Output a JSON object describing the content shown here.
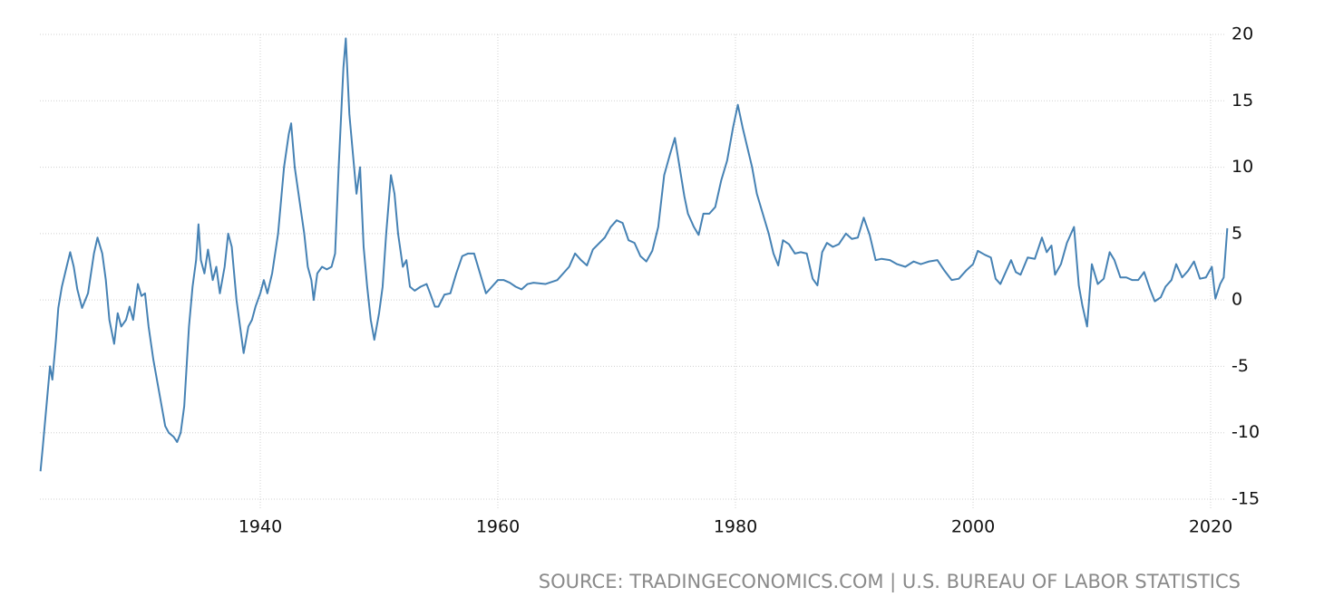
{
  "chart_data": {
    "type": "line",
    "source": "SOURCE: TRADINGECONOMICS.COM | U.S. BUREAU OF LABOR STATISTICS",
    "x": [
      1921.5,
      1921.7,
      1922.0,
      1922.3,
      1922.5,
      1922.8,
      1923.0,
      1923.3,
      1923.7,
      1924.0,
      1924.3,
      1924.6,
      1925.0,
      1925.5,
      1926.0,
      1926.3,
      1926.7,
      1927.0,
      1927.3,
      1927.7,
      1928.0,
      1928.3,
      1928.7,
      1929.0,
      1929.3,
      1929.7,
      1930.0,
      1930.3,
      1930.6,
      1931.0,
      1931.5,
      1932.0,
      1932.3,
      1932.7,
      1933.0,
      1933.3,
      1933.6,
      1934.0,
      1934.3,
      1934.6,
      1934.8,
      1935.0,
      1935.3,
      1935.6,
      1936.0,
      1936.3,
      1936.6,
      1937.0,
      1937.3,
      1937.6,
      1938.0,
      1938.3,
      1938.6,
      1939.0,
      1939.3,
      1939.6,
      1940.0,
      1940.3,
      1940.6,
      1941.0,
      1941.5,
      1942.0,
      1942.4,
      1942.6,
      1942.9,
      1943.3,
      1943.7,
      1944.0,
      1944.3,
      1944.5,
      1944.8,
      1945.2,
      1945.6,
      1946.0,
      1946.3,
      1946.6,
      1947.0,
      1947.2,
      1947.5,
      1947.8,
      1948.1,
      1948.4,
      1948.7,
      1949.0,
      1949.3,
      1949.6,
      1950.0,
      1950.3,
      1950.6,
      1951.0,
      1951.3,
      1951.6,
      1952.0,
      1952.3,
      1952.6,
      1953.0,
      1953.5,
      1954.0,
      1954.3,
      1954.7,
      1955.0,
      1955.5,
      1956.0,
      1956.5,
      1957.0,
      1957.5,
      1958.0,
      1958.5,
      1959.0,
      1959.5,
      1960.0,
      1960.5,
      1961.0,
      1961.5,
      1962.0,
      1962.5,
      1963.0,
      1964.0,
      1965.0,
      1966.0,
      1966.5,
      1967.0,
      1967.5,
      1968.0,
      1969.0,
      1969.5,
      1970.0,
      1970.5,
      1971.0,
      1971.5,
      1972.0,
      1972.5,
      1973.0,
      1973.5,
      1974.0,
      1974.5,
      1974.9,
      1975.3,
      1975.7,
      1976.0,
      1976.5,
      1976.9,
      1977.3,
      1977.8,
      1978.3,
      1978.8,
      1979.3,
      1979.8,
      1980.2,
      1980.6,
      1981.0,
      1981.4,
      1981.8,
      1982.3,
      1982.8,
      1983.2,
      1983.6,
      1984.0,
      1984.5,
      1985.0,
      1985.5,
      1986.0,
      1986.5,
      1986.9,
      1987.3,
      1987.7,
      1988.2,
      1988.7,
      1989.3,
      1989.8,
      1990.3,
      1990.8,
      1991.3,
      1991.8,
      1992.3,
      1993.0,
      1993.6,
      1994.3,
      1995.0,
      1995.6,
      1996.3,
      1997.0,
      1997.6,
      1998.2,
      1998.8,
      1999.4,
      2000.0,
      2000.4,
      2001.0,
      2001.5,
      2001.9,
      2002.3,
      2002.8,
      2003.2,
      2003.6,
      2004.0,
      2004.6,
      2005.2,
      2005.8,
      2006.2,
      2006.6,
      2006.9,
      2007.4,
      2007.9,
      2008.5,
      2008.9,
      2009.2,
      2009.6,
      2010.0,
      2010.5,
      2011.0,
      2011.5,
      2011.9,
      2012.4,
      2012.9,
      2013.4,
      2013.9,
      2014.4,
      2014.9,
      2015.3,
      2015.8,
      2016.2,
      2016.7,
      2017.1,
      2017.6,
      2018.1,
      2018.6,
      2019.1,
      2019.6,
      2020.1,
      2020.4,
      2020.8,
      2021.1,
      2021.4
    ],
    "series": [
      {
        "color": "#4682b4",
        "values": [
          -12.9,
          -11,
          -8,
          -5,
          -6,
          -3,
          -0.6,
          1,
          2.5,
          3.6,
          2.5,
          0.8,
          -0.6,
          0.5,
          3.5,
          4.7,
          3.5,
          1.5,
          -1.5,
          -3.3,
          -1,
          -2,
          -1.5,
          -0.5,
          -1.5,
          1.2,
          0.3,
          0.5,
          -2,
          -4.5,
          -7,
          -9.5,
          -10,
          -10.3,
          -10.7,
          -10,
          -8,
          -2,
          1,
          3,
          5.7,
          3,
          2,
          3.8,
          1.5,
          2.5,
          0.5,
          2.5,
          5,
          4,
          0,
          -2,
          -4,
          -2,
          -1.5,
          -0.5,
          0.5,
          1.5,
          0.5,
          2,
          5,
          10,
          12.5,
          13.3,
          10,
          7.5,
          5,
          2.5,
          1.5,
          0,
          2,
          2.5,
          2.3,
          2.5,
          3.5,
          10,
          17.5,
          19.7,
          14,
          11,
          8,
          10,
          4,
          1,
          -1.5,
          -3,
          -1,
          1,
          5,
          9.4,
          8,
          5,
          2.5,
          3,
          1,
          0.7,
          1,
          1.2,
          0.5,
          -0.5,
          -0.5,
          0.4,
          0.5,
          2,
          3.3,
          3.5,
          3.5,
          2,
          0.5,
          1,
          1.5,
          1.5,
          1.3,
          1,
          0.8,
          1.2,
          1.3,
          1.2,
          1.5,
          2.5,
          3.5,
          3,
          2.6,
          3.8,
          4.7,
          5.5,
          6,
          5.8,
          4.5,
          4.3,
          3.3,
          2.9,
          3.7,
          5.5,
          9.4,
          11,
          12.2,
          10,
          7.8,
          6.5,
          5.5,
          4.9,
          6.5,
          6.5,
          7,
          9,
          10.5,
          13,
          14.7,
          13,
          11.5,
          10,
          8,
          6.5,
          5,
          3.5,
          2.6,
          4.5,
          4.2,
          3.5,
          3.6,
          3.5,
          1.6,
          1.1,
          3.6,
          4.3,
          4,
          4.2,
          5,
          4.6,
          4.7,
          6.2,
          4.9,
          3,
          3.1,
          3,
          2.7,
          2.5,
          2.9,
          2.7,
          2.9,
          3,
          2.2,
          1.5,
          1.6,
          2.2,
          2.7,
          3.7,
          3.4,
          3.2,
          1.6,
          1.2,
          2.2,
          3,
          2.1,
          1.9,
          3.2,
          3.1,
          4.7,
          3.6,
          4.1,
          1.9,
          2.7,
          4.3,
          5.5,
          1.1,
          -0.4,
          -2,
          2.7,
          1.2,
          1.6,
          3.6,
          3,
          1.7,
          1.7,
          1.5,
          1.5,
          2.1,
          0.8,
          -0.1,
          0.2,
          1,
          1.5,
          2.7,
          1.7,
          2.2,
          2.9,
          1.6,
          1.7,
          2.5,
          0.1,
          1.2,
          1.7,
          5.4
        ]
      }
    ],
    "xlim": [
      1921.45,
      2021.45
    ],
    "xticks": [
      1940,
      1960,
      1980,
      2000,
      2020
    ],
    "ylim": [
      -15,
      20
    ],
    "yticks": [
      -15,
      -10,
      -5,
      0,
      5,
      10,
      15,
      20
    ],
    "grid": true
  }
}
